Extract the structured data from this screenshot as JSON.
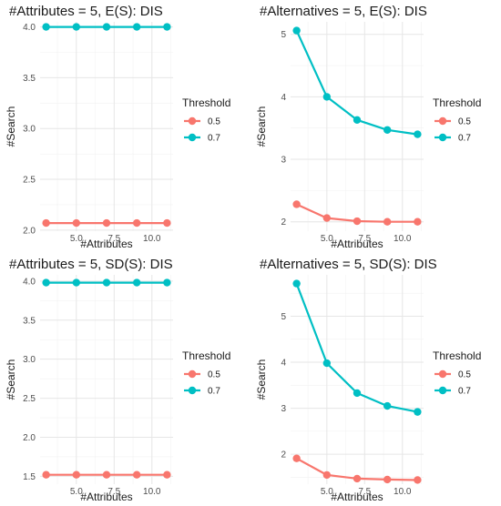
{
  "chart_data": [
    {
      "type": "line",
      "title": "#Attributes = 5, E(S): DIS",
      "xlabel": "#Attributes",
      "ylabel": "#Search",
      "x": [
        3,
        5,
        7,
        9,
        11
      ],
      "xlim": [
        2.6,
        11.4
      ],
      "xticks": [
        5,
        7.5,
        10
      ],
      "xtick_labels": [
        "5.0",
        "7.5",
        "10.0"
      ],
      "ylim": [
        1.99,
        4.05
      ],
      "yticks": [
        2.0,
        2.5,
        3.0,
        3.5,
        4.0
      ],
      "ytick_labels": [
        "2.0",
        "2.5",
        "3.0",
        "3.5",
        "4.0"
      ],
      "legend_title": "Threshold",
      "series": [
        {
          "name": "0.5",
          "color": "#F8766D",
          "values": [
            2.07,
            2.07,
            2.07,
            2.07,
            2.07
          ]
        },
        {
          "name": "0.7",
          "color": "#00BFC4",
          "values": [
            4.0,
            4.0,
            4.0,
            4.0,
            4.0
          ]
        }
      ],
      "grid": true
    },
    {
      "type": "line",
      "title": "#Alternatives = 5, E(S): DIS",
      "xlabel": "#Attributes",
      "ylabel": "#Search",
      "x": [
        3,
        5,
        7,
        9,
        11
      ],
      "xlim": [
        2.6,
        11.4
      ],
      "xticks": [
        5,
        7.5,
        10
      ],
      "xtick_labels": [
        "5.0",
        "7.5",
        "10.0"
      ],
      "ylim": [
        1.85,
        5.2
      ],
      "yticks": [
        2,
        3,
        4,
        5
      ],
      "ytick_labels": [
        "2",
        "3",
        "4",
        "5"
      ],
      "legend_title": "Threshold",
      "series": [
        {
          "name": "0.5",
          "color": "#F8766D",
          "values": [
            2.28,
            2.06,
            2.01,
            2.0,
            2.0
          ]
        },
        {
          "name": "0.7",
          "color": "#00BFC4",
          "values": [
            5.06,
            4.0,
            3.63,
            3.47,
            3.4
          ]
        }
      ],
      "grid": true
    },
    {
      "type": "line",
      "title": "#Attributes = 5, SD(S): DIS",
      "xlabel": "#Attributes",
      "ylabel": "#Search",
      "x": [
        3,
        5,
        7,
        9,
        11
      ],
      "xlim": [
        2.6,
        11.4
      ],
      "xticks": [
        5,
        7.5,
        10
      ],
      "xtick_labels": [
        "5.0",
        "7.5",
        "10.0"
      ],
      "ylim": [
        1.4,
        4.08
      ],
      "yticks": [
        1.5,
        2.0,
        2.5,
        3.0,
        3.5,
        4.0
      ],
      "ytick_labels": [
        "1.5",
        "2.0",
        "2.5",
        "3.0",
        "3.5",
        "4.0"
      ],
      "legend_title": "Threshold",
      "series": [
        {
          "name": "0.5",
          "color": "#F8766D",
          "values": [
            1.52,
            1.52,
            1.52,
            1.52,
            1.52
          ]
        },
        {
          "name": "0.7",
          "color": "#00BFC4",
          "values": [
            3.98,
            3.98,
            3.98,
            3.98,
            3.98
          ]
        }
      ],
      "grid": true
    },
    {
      "type": "line",
      "title": "#Alternatives = 5, SD(S): DIS",
      "xlabel": "#Attributes",
      "ylabel": "#Search",
      "x": [
        3,
        5,
        7,
        9,
        11
      ],
      "xlim": [
        2.6,
        11.4
      ],
      "xticks": [
        5,
        7.5,
        10
      ],
      "xtick_labels": [
        "5.0",
        "7.5",
        "10.0"
      ],
      "ylim": [
        1.35,
        5.9
      ],
      "yticks": [
        2,
        3,
        4,
        5
      ],
      "ytick_labels": [
        "2",
        "3",
        "4",
        "5"
      ],
      "legend_title": "Threshold",
      "series": [
        {
          "name": "0.5",
          "color": "#F8766D",
          "values": [
            1.91,
            1.55,
            1.47,
            1.45,
            1.44
          ]
        },
        {
          "name": "0.7",
          "color": "#00BFC4",
          "values": [
            5.71,
            3.98,
            3.33,
            3.05,
            2.92
          ]
        }
      ],
      "grid": true
    }
  ]
}
